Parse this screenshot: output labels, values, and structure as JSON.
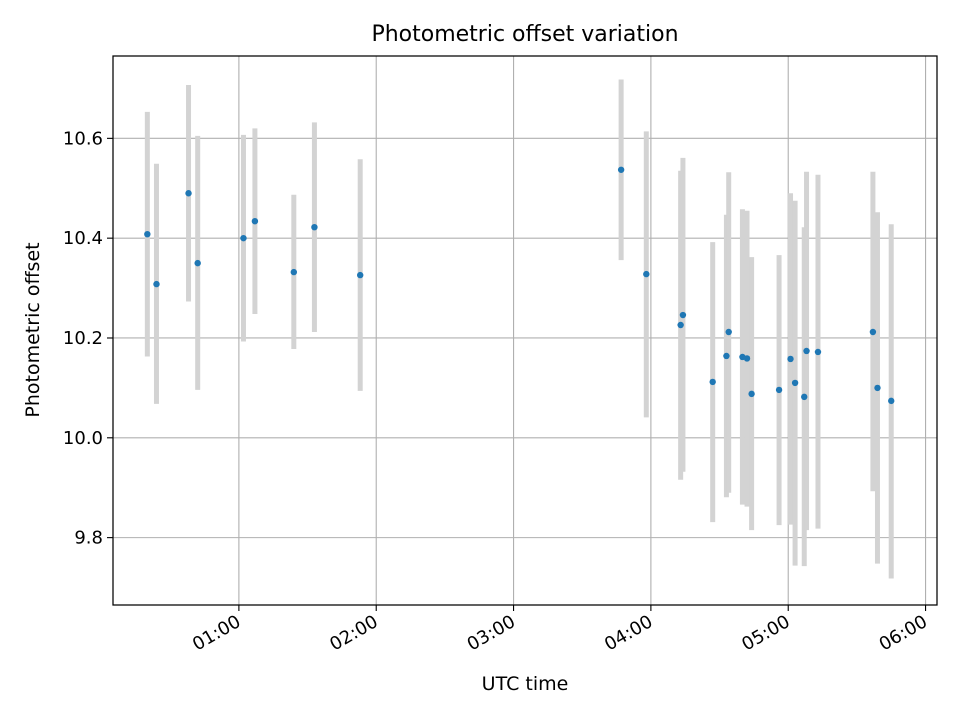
{
  "chart_data": {
    "type": "scatter",
    "title": "Photometric offset variation",
    "xlabel": "UTC time",
    "ylabel": "Photometric offset",
    "xlim": [
      "00:05",
      "06:05"
    ],
    "ylim": [
      9.665,
      10.765
    ],
    "x_ticks": [
      "01:00",
      "02:00",
      "03:00",
      "04:00",
      "05:00",
      "06:00"
    ],
    "y_ticks": [
      "9.8",
      "10.0",
      "10.2",
      "10.4",
      "10.6"
    ],
    "grid": true,
    "point_color": "#1f77b4",
    "errorbar_color": "#d3d3d3",
    "points": [
      {
        "t": "00:20",
        "y": 10.408,
        "lo": 10.163,
        "hi": 10.653
      },
      {
        "t": "00:24",
        "y": 10.308,
        "lo": 10.068,
        "hi": 10.549
      },
      {
        "t": "00:38",
        "y": 10.49,
        "lo": 10.273,
        "hi": 10.707
      },
      {
        "t": "00:42",
        "y": 10.35,
        "lo": 10.096,
        "hi": 10.605
      },
      {
        "t": "01:02",
        "y": 10.4,
        "lo": 10.193,
        "hi": 10.607
      },
      {
        "t": "01:07",
        "y": 10.434,
        "lo": 10.248,
        "hi": 10.62
      },
      {
        "t": "01:24",
        "y": 10.332,
        "lo": 10.178,
        "hi": 10.487
      },
      {
        "t": "01:33",
        "y": 10.422,
        "lo": 10.212,
        "hi": 10.632
      },
      {
        "t": "01:53",
        "y": 10.326,
        "lo": 10.094,
        "hi": 10.558
      },
      {
        "t": "03:47",
        "y": 10.537,
        "lo": 10.356,
        "hi": 10.718
      },
      {
        "t": "03:58",
        "y": 10.328,
        "lo": 10.041,
        "hi": 10.614
      },
      {
        "t": "04:13",
        "y": 10.226,
        "lo": 9.916,
        "hi": 10.535
      },
      {
        "t": "04:14",
        "y": 10.246,
        "lo": 9.932,
        "hi": 10.561
      },
      {
        "t": "04:27",
        "y": 10.112,
        "lo": 9.831,
        "hi": 10.392
      },
      {
        "t": "04:33",
        "y": 10.164,
        "lo": 9.881,
        "hi": 10.447
      },
      {
        "t": "04:34",
        "y": 10.212,
        "lo": 9.89,
        "hi": 10.532
      },
      {
        "t": "04:40",
        "y": 10.162,
        "lo": 9.866,
        "hi": 10.458
      },
      {
        "t": "04:42",
        "y": 10.159,
        "lo": 9.862,
        "hi": 10.455
      },
      {
        "t": "04:44",
        "y": 10.088,
        "lo": 9.815,
        "hi": 10.362
      },
      {
        "t": "04:56",
        "y": 10.096,
        "lo": 9.825,
        "hi": 10.366
      },
      {
        "t": "05:01",
        "y": 10.158,
        "lo": 9.826,
        "hi": 10.49
      },
      {
        "t": "05:03",
        "y": 10.11,
        "lo": 9.744,
        "hi": 10.475
      },
      {
        "t": "05:07",
        "y": 10.082,
        "lo": 9.743,
        "hi": 10.422
      },
      {
        "t": "05:08",
        "y": 10.174,
        "lo": 9.815,
        "hi": 10.533
      },
      {
        "t": "05:13",
        "y": 10.172,
        "lo": 9.818,
        "hi": 10.527
      },
      {
        "t": "05:37",
        "y": 10.212,
        "lo": 9.893,
        "hi": 10.533
      },
      {
        "t": "05:39",
        "y": 10.1,
        "lo": 9.748,
        "hi": 10.452
      },
      {
        "t": "05:45",
        "y": 10.074,
        "lo": 9.718,
        "hi": 10.428
      }
    ]
  }
}
